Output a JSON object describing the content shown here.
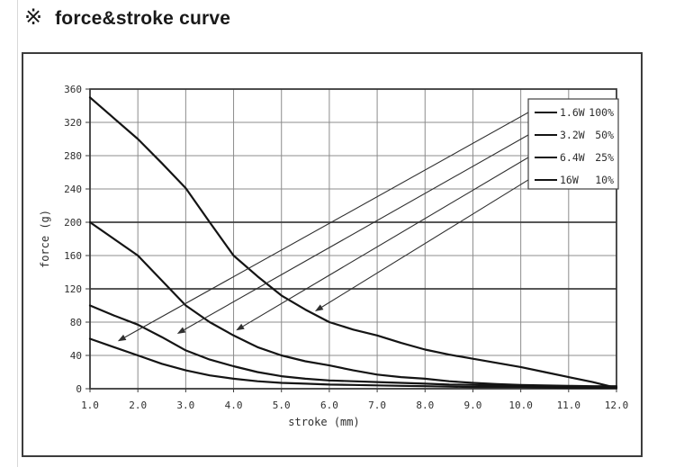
{
  "page": {
    "title_mark": "※",
    "title": "force&stroke curve"
  },
  "chart_data": {
    "type": "line",
    "title": "force&stroke curve",
    "xlabel": "stroke (mm)",
    "ylabel": "force (g)",
    "xlim": [
      1.0,
      12.0
    ],
    "ylim": [
      0,
      360
    ],
    "x_ticks": [
      1,
      2,
      3,
      4,
      5,
      6,
      7,
      8,
      9,
      10,
      11,
      12
    ],
    "x_tick_labels": [
      "1.0",
      "2.0",
      "3.0",
      "4.0",
      "5.0",
      "6.0",
      "7.0",
      "8.0",
      "9.0",
      "10.0",
      "11.0",
      "12.0"
    ],
    "y_ticks": [
      0,
      40,
      80,
      120,
      160,
      200,
      240,
      280,
      320,
      360
    ],
    "grid": true,
    "emphasized_y_gridlines": [
      120,
      200
    ],
    "legend_position": "top-right",
    "series": [
      {
        "name": "1.6W",
        "duty": "100%",
        "points": [
          [
            1,
            60
          ],
          [
            1.5,
            50
          ],
          [
            2,
            40
          ],
          [
            2.5,
            30
          ],
          [
            3,
            22
          ],
          [
            3.5,
            16
          ],
          [
            4,
            12
          ],
          [
            4.5,
            9
          ],
          [
            5,
            7
          ],
          [
            5.5,
            6
          ],
          [
            6,
            5
          ],
          [
            6.5,
            4.5
          ],
          [
            7,
            4
          ],
          [
            7.5,
            3.5
          ],
          [
            8,
            3
          ],
          [
            8.5,
            2.5
          ],
          [
            9,
            2
          ],
          [
            9.5,
            2
          ],
          [
            10,
            2
          ],
          [
            10.5,
            1.5
          ],
          [
            11,
            1
          ],
          [
            11.5,
            1
          ],
          [
            12,
            1
          ]
        ]
      },
      {
        "name": "3.2W",
        "duty": "50%",
        "points": [
          [
            1,
            100
          ],
          [
            1.5,
            88
          ],
          [
            2,
            77
          ],
          [
            2.5,
            62
          ],
          [
            3,
            46
          ],
          [
            3.5,
            35
          ],
          [
            4,
            27
          ],
          [
            4.5,
            20
          ],
          [
            5,
            15
          ],
          [
            5.5,
            12
          ],
          [
            6,
            10
          ],
          [
            6.5,
            9
          ],
          [
            7,
            8
          ],
          [
            7.5,
            7
          ],
          [
            8,
            6
          ],
          [
            8.5,
            5
          ],
          [
            9,
            4.5
          ],
          [
            9.5,
            4
          ],
          [
            10,
            3.5
          ],
          [
            10.5,
            3
          ],
          [
            11,
            2.5
          ],
          [
            11.5,
            2
          ],
          [
            12,
            2
          ]
        ]
      },
      {
        "name": "6.4W",
        "duty": "25%",
        "points": [
          [
            1,
            200
          ],
          [
            1.5,
            180
          ],
          [
            2,
            160
          ],
          [
            2.5,
            130
          ],
          [
            3,
            100
          ],
          [
            3.5,
            80
          ],
          [
            4,
            64
          ],
          [
            4.5,
            50
          ],
          [
            5,
            40
          ],
          [
            5.5,
            33
          ],
          [
            6,
            28
          ],
          [
            6.5,
            22
          ],
          [
            7,
            17
          ],
          [
            7.5,
            14
          ],
          [
            8,
            12
          ],
          [
            8.5,
            9
          ],
          [
            9,
            7
          ],
          [
            9.5,
            5.5
          ],
          [
            10,
            4.5
          ],
          [
            10.5,
            4
          ],
          [
            11,
            3.5
          ],
          [
            11.5,
            3
          ],
          [
            12,
            3
          ]
        ]
      },
      {
        "name": "16W",
        "duty": "10%",
        "points": [
          [
            1,
            350
          ],
          [
            1.5,
            325
          ],
          [
            2,
            300
          ],
          [
            2.5,
            271
          ],
          [
            3,
            241
          ],
          [
            3.5,
            200
          ],
          [
            4,
            160
          ],
          [
            4.5,
            135
          ],
          [
            5,
            112
          ],
          [
            5.5,
            95
          ],
          [
            6,
            80
          ],
          [
            6.5,
            71
          ],
          [
            7,
            64
          ],
          [
            7.5,
            55
          ],
          [
            8,
            47
          ],
          [
            8.5,
            41
          ],
          [
            9,
            36
          ],
          [
            9.5,
            31
          ],
          [
            10,
            26
          ],
          [
            10.5,
            20
          ],
          [
            11,
            14
          ],
          [
            11.5,
            8
          ],
          [
            12,
            1
          ]
        ]
      }
    ],
    "annotations": {
      "leaders": [
        {
          "series": "1.6W",
          "from": [
            10.16,
            332
          ],
          "to": [
            1.58,
            57
          ]
        },
        {
          "series": "3.2W",
          "from": [
            10.16,
            305
          ],
          "to": [
            2.82,
            66
          ]
        },
        {
          "series": "6.4W",
          "from": [
            10.16,
            278
          ],
          "to": [
            4.05,
            70
          ]
        },
        {
          "series": "16W",
          "from": [
            10.16,
            251
          ],
          "to": [
            5.7,
            93
          ]
        }
      ]
    },
    "colors": {
      "line": "#141414",
      "grid": "#8c8c8c",
      "grid_emphasis": "#3f3f3f",
      "frame": "#3a3a3a",
      "text": "#2e2e2e",
      "leader": "#303030",
      "legend_border": "#3f3f3f",
      "background": "#ffffff"
    }
  }
}
